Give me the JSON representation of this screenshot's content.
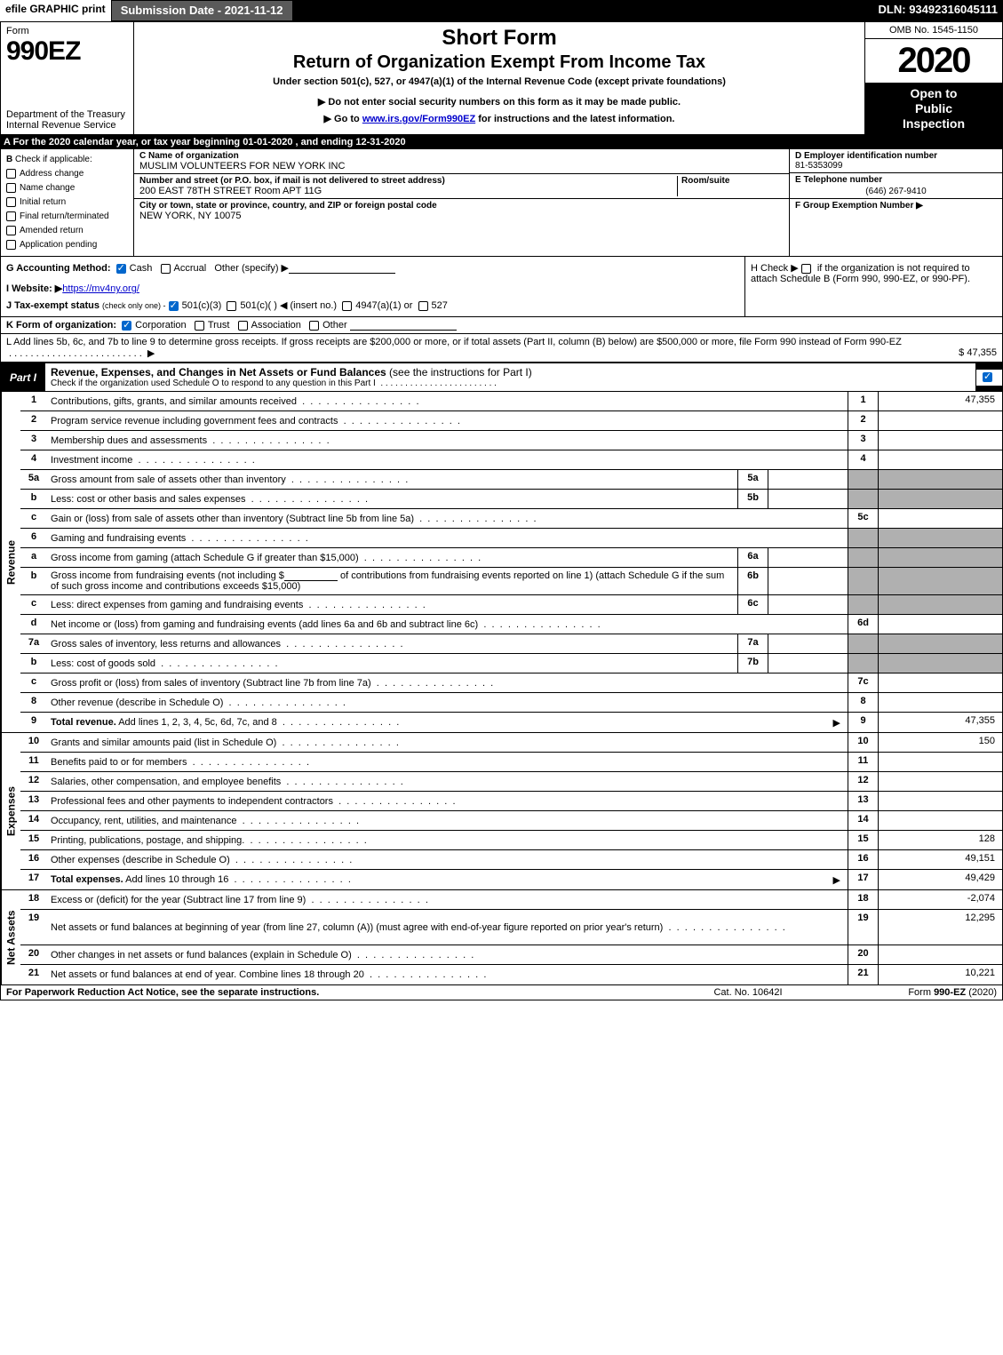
{
  "topbar": {
    "efile": "efile GRAPHIC print",
    "subdate_label": "Submission Date - 2021-11-12",
    "dln": "DLN: 93492316045111"
  },
  "header": {
    "form_word": "Form",
    "form_num": "990EZ",
    "dept": "Department of the Treasury Internal Revenue Service",
    "short_form": "Short Form",
    "return_line": "Return of Organization Exempt From Income Tax",
    "under_section": "Under section 501(c), 527, or 4947(a)(1) of the Internal Revenue Code (except private foundations)",
    "do_not": "▶ Do not enter social security numbers on this form as it may be made public.",
    "go_to_prefix": "▶ Go to ",
    "go_to_link": "www.irs.gov/Form990EZ",
    "go_to_suffix": " for instructions and the latest information.",
    "omb": "OMB No. 1545-1150",
    "year": "2020",
    "inspection_l1": "Open to",
    "inspection_l2": "Public",
    "inspection_l3": "Inspection"
  },
  "row_a": "A For the 2020 calendar year, or tax year beginning 01-01-2020 , and ending 12-31-2020",
  "col_b": {
    "title": "B",
    "check_if": "Check if applicable:",
    "opts": [
      "Address change",
      "Name change",
      "Initial return",
      "Final return/terminated",
      "Amended return",
      "Application pending"
    ]
  },
  "col_c": {
    "name_label": "C Name of organization",
    "name_val": "MUSLIM VOLUNTEERS FOR NEW YORK INC",
    "addr_label": "Number and street (or P.O. box, if mail is not delivered to street address)",
    "room_label": "Room/suite",
    "addr_val": "200 EAST 78TH STREET Room APT 11G",
    "city_label": "City or town, state or province, country, and ZIP or foreign postal code",
    "city_val": "NEW YORK, NY  10075"
  },
  "col_def": {
    "d_label": "D Employer identification number",
    "d_val": "81-5353099",
    "e_label": "E Telephone number",
    "e_val": "(646) 267-9410",
    "f_label": "F Group Exemption Number  ▶"
  },
  "ghij": {
    "g_label": "G Accounting Method:",
    "g_cash": "Cash",
    "g_accrual": "Accrual",
    "g_other": "Other (specify) ▶",
    "i_label": "I Website: ▶",
    "i_link": "https://mv4ny.org/",
    "j_label": "J Tax-exempt status",
    "j_sub": "(check only one) -",
    "j_501c3": "501(c)(3)",
    "j_501c": "501(c)(  ) ◀ (insert no.)",
    "j_4947": "4947(a)(1) or",
    "j_527": "527",
    "h_text": "H  Check ▶",
    "h_rest": "if the organization is not required to attach Schedule B (Form 990, 990-EZ, or 990-PF)."
  },
  "row_k": {
    "label": "K Form of organization:",
    "corp": "Corporation",
    "trust": "Trust",
    "assoc": "Association",
    "other": "Other"
  },
  "row_l": {
    "text": "L Add lines 5b, 6c, and 7b to line 9 to determine gross receipts. If gross receipts are $200,000 or more, or if total assets (Part II, column (B) below) are $500,000 or more, file Form 990 instead of Form 990-EZ",
    "arrow": "▶",
    "amount": "$ 47,355"
  },
  "part1_header": {
    "tab": "Part I",
    "title": "Revenue, Expenses, and Changes in Net Assets or Fund Balances",
    "paren": "(see the instructions for Part I)",
    "subline": "Check if the organization used Schedule O to respond to any question in this Part I"
  },
  "side_labels": {
    "revenue": "Revenue",
    "expenses": "Expenses",
    "netassets": "Net Assets"
  },
  "revenue_lines": [
    {
      "num": "1",
      "desc": "Contributions, gifts, grants, and similar amounts received",
      "rnum": "1",
      "rval": "47,355"
    },
    {
      "num": "2",
      "desc": "Program service revenue including government fees and contracts",
      "rnum": "2",
      "rval": ""
    },
    {
      "num": "3",
      "desc": "Membership dues and assessments",
      "rnum": "3",
      "rval": ""
    },
    {
      "num": "4",
      "desc": "Investment income",
      "rnum": "4",
      "rval": ""
    },
    {
      "num": "5a",
      "desc": "Gross amount from sale of assets other than inventory",
      "snum": "5a",
      "sval": "",
      "shaded": true
    },
    {
      "num": "b",
      "desc": "Less: cost or other basis and sales expenses",
      "snum": "5b",
      "sval": "",
      "shaded": true
    },
    {
      "num": "c",
      "desc": "Gain or (loss) from sale of assets other than inventory (Subtract line 5b from line 5a)",
      "rnum": "5c",
      "rval": ""
    },
    {
      "num": "6",
      "desc": "Gaming and fundraising events",
      "shaded": true,
      "no_right_border": true
    },
    {
      "num": "a",
      "desc": "Gross income from gaming (attach Schedule G if greater than $15,000)",
      "snum": "6a",
      "sval": "",
      "shaded": true
    },
    {
      "num": "b",
      "desc_html": true,
      "desc1": "Gross income from fundraising events (not including $",
      "desc2": "of contributions from fundraising events reported on line 1) (attach Schedule G if the sum of such gross income and contributions exceeds $15,000)",
      "snum": "6b",
      "sval": "",
      "shaded": true
    },
    {
      "num": "c",
      "desc": "Less: direct expenses from gaming and fundraising events",
      "snum": "6c",
      "sval": "",
      "shaded": true
    },
    {
      "num": "d",
      "desc": "Net income or (loss) from gaming and fundraising events (add lines 6a and 6b and subtract line 6c)",
      "rnum": "6d",
      "rval": ""
    },
    {
      "num": "7a",
      "desc": "Gross sales of inventory, less returns and allowances",
      "snum": "7a",
      "sval": "",
      "shaded": true
    },
    {
      "num": "b",
      "desc": "Less: cost of goods sold",
      "snum": "7b",
      "sval": "",
      "shaded": true
    },
    {
      "num": "c",
      "desc": "Gross profit or (loss) from sales of inventory (Subtract line 7b from line 7a)",
      "rnum": "7c",
      "rval": ""
    },
    {
      "num": "8",
      "desc": "Other revenue (describe in Schedule O)",
      "rnum": "8",
      "rval": ""
    },
    {
      "num": "9",
      "desc": "Total revenue. Add lines 1, 2, 3, 4, 5c, 6d, 7c, and 8",
      "bold": true,
      "arrow": true,
      "rnum": "9",
      "rval": "47,355"
    }
  ],
  "expense_lines": [
    {
      "num": "10",
      "desc": "Grants and similar amounts paid (list in Schedule O)",
      "rnum": "10",
      "rval": "150"
    },
    {
      "num": "11",
      "desc": "Benefits paid to or for members",
      "rnum": "11",
      "rval": ""
    },
    {
      "num": "12",
      "desc": "Salaries, other compensation, and employee benefits",
      "rnum": "12",
      "rval": ""
    },
    {
      "num": "13",
      "desc": "Professional fees and other payments to independent contractors",
      "rnum": "13",
      "rval": ""
    },
    {
      "num": "14",
      "desc": "Occupancy, rent, utilities, and maintenance",
      "rnum": "14",
      "rval": ""
    },
    {
      "num": "15",
      "desc": "Printing, publications, postage, and shipping.",
      "rnum": "15",
      "rval": "128"
    },
    {
      "num": "16",
      "desc": "Other expenses (describe in Schedule O)",
      "rnum": "16",
      "rval": "49,151"
    },
    {
      "num": "17",
      "desc": "Total expenses. Add lines 10 through 16",
      "bold": true,
      "arrow": true,
      "rnum": "17",
      "rval": "49,429"
    }
  ],
  "netasset_lines": [
    {
      "num": "18",
      "desc": "Excess or (deficit) for the year (Subtract line 17 from line 9)",
      "rnum": "18",
      "rval": "-2,074"
    },
    {
      "num": "19",
      "desc": "Net assets or fund balances at beginning of year (from line 27, column (A)) (must agree with end-of-year figure reported on prior year's return)",
      "rnum": "19",
      "rval": "12,295",
      "tall": true
    },
    {
      "num": "20",
      "desc": "Other changes in net assets or fund balances (explain in Schedule O)",
      "rnum": "20",
      "rval": ""
    },
    {
      "num": "21",
      "desc": "Net assets or fund balances at end of year. Combine lines 18 through 20",
      "rnum": "21",
      "rval": "10,221"
    }
  ],
  "footer": {
    "left": "For Paperwork Reduction Act Notice, see the separate instructions.",
    "mid": "Cat. No. 10642I",
    "right_prefix": "Form ",
    "right_bold": "990-EZ",
    "right_suffix": " (2020)"
  }
}
